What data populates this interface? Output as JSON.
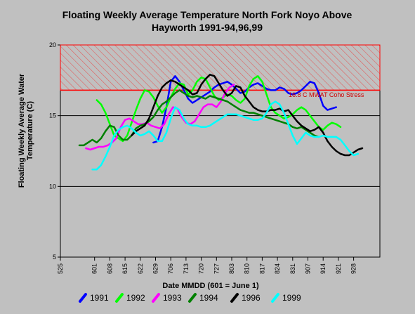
{
  "chart_data": {
    "type": "line",
    "title_line1": "Floating Weekly Average Temperature North Fork Noyo Above",
    "title_line2": "Hayworth 1991-94,96,99",
    "xlabel": "Date MMDD (601 = June 1)",
    "ylabel_line1": "Floating Weekly Average Water",
    "ylabel_line2": "Temperature (C)",
    "xlim": [
      0,
      126
    ],
    "ylim": [
      5,
      20
    ],
    "xticks": [
      {
        "pos": 0,
        "label": "525"
      },
      {
        "pos": 7,
        "label": "601"
      },
      {
        "pos": 14,
        "label": "608"
      },
      {
        "pos": 21,
        "label": "615"
      },
      {
        "pos": 28,
        "label": "622"
      },
      {
        "pos": 35,
        "label": "629"
      },
      {
        "pos": 42,
        "label": "706"
      },
      {
        "pos": 49,
        "label": "713"
      },
      {
        "pos": 56,
        "label": "720"
      },
      {
        "pos": 63,
        "label": "727"
      },
      {
        "pos": 70,
        "label": "803"
      },
      {
        "pos": 77,
        "label": "810"
      },
      {
        "pos": 84,
        "label": "817"
      },
      {
        "pos": 91,
        "label": "824"
      },
      {
        "pos": 98,
        "label": "831"
      },
      {
        "pos": 105,
        "label": "907"
      },
      {
        "pos": 112,
        "label": "914"
      },
      {
        "pos": 119,
        "label": "921"
      },
      {
        "pos": 126,
        "label": "928"
      }
    ],
    "yticks": [
      5,
      10,
      15,
      20
    ],
    "gridlines_y": [
      10,
      15
    ],
    "threshold": {
      "value": 16.8,
      "label": "16.8 C MWAT Coho Stress",
      "color": "#ff0000"
    },
    "series": [
      {
        "name": "1991",
        "color": "#0000ff",
        "x": [
          34,
          36,
          38,
          40,
          42,
          44,
          46,
          48,
          50,
          52,
          54,
          56,
          58,
          60,
          62,
          64,
          66,
          68,
          70,
          72,
          74,
          76,
          78,
          80,
          82,
          84,
          86,
          88,
          90,
          92,
          94,
          96,
          98,
          100,
          102,
          104,
          106,
          108,
          110,
          112,
          114,
          116,
          118
        ],
        "y": [
          13.1,
          13.2,
          14.2,
          15.6,
          17.4,
          17.8,
          17.4,
          16.8,
          16.2,
          15.9,
          16.1,
          16.3,
          16.5,
          16.7,
          17.0,
          17.2,
          17.3,
          17.4,
          17.2,
          16.9,
          16.6,
          16.7,
          17.0,
          17.2,
          17.3,
          17.1,
          16.9,
          16.8,
          16.8,
          17.0,
          16.9,
          16.6,
          16.5,
          16.6,
          16.8,
          17.1,
          17.4,
          17.3,
          16.6,
          15.7,
          15.4,
          15.5,
          15.6
        ]
      },
      {
        "name": "1992",
        "color": "#00ff00",
        "x": [
          8,
          10,
          12,
          14,
          16,
          18,
          20,
          22,
          24,
          26,
          28,
          30,
          32,
          34,
          36,
          38,
          40,
          42,
          44,
          46,
          48,
          50,
          52,
          54,
          56,
          58,
          60,
          62,
          64,
          66,
          68,
          70,
          72,
          74,
          76,
          78,
          80,
          82,
          84,
          86,
          88,
          90,
          92,
          94,
          96,
          98,
          100,
          102,
          104,
          106,
          108,
          110,
          112,
          114,
          116,
          118,
          120
        ],
        "y": [
          16.1,
          15.8,
          15.2,
          14.4,
          13.6,
          13.4,
          13.2,
          13.6,
          14.5,
          15.4,
          16.2,
          16.8,
          16.7,
          16.3,
          15.7,
          15.2,
          15.6,
          16.3,
          16.9,
          17.3,
          17.2,
          16.5,
          16.8,
          17.4,
          17.7,
          17.6,
          17.0,
          16.4,
          16.1,
          16.3,
          16.5,
          16.4,
          16.1,
          15.9,
          16.2,
          17.1,
          17.6,
          17.8,
          17.4,
          16.5,
          15.6,
          15.2,
          15.0,
          14.8,
          14.9,
          15.1,
          15.4,
          15.6,
          15.4,
          15.0,
          14.6,
          14.2,
          14.0,
          14.3,
          14.5,
          14.4,
          14.2
        ]
      },
      {
        "name": "1993",
        "color": "#ff00ff",
        "x": [
          3,
          5,
          7,
          9,
          11,
          13,
          15,
          17,
          19,
          21,
          23,
          25,
          27,
          29,
          31,
          33,
          35,
          37,
          39,
          41,
          43,
          45,
          47,
          49,
          51,
          53,
          55,
          57,
          59,
          61,
          63,
          65,
          67,
          69,
          71
        ],
        "y": [
          12.7,
          12.6,
          12.7,
          12.8,
          12.8,
          12.9,
          13.1,
          13.4,
          14.2,
          14.7,
          14.8,
          14.6,
          14.4,
          14.4,
          14.5,
          14.3,
          14.2,
          14.1,
          14.4,
          15.1,
          15.6,
          15.5,
          14.9,
          14.5,
          14.4,
          14.6,
          15.1,
          15.6,
          15.8,
          15.8,
          15.6,
          16.0,
          16.6,
          17.0,
          17.2
        ]
      },
      {
        "name": "1994",
        "color": "#008000",
        "x": [
          0,
          2,
          4,
          6,
          8,
          10,
          12,
          14,
          16,
          18,
          20,
          22,
          24,
          26,
          28,
          30,
          32,
          34,
          36,
          38,
          40,
          42,
          44,
          46,
          48,
          50,
          52,
          54,
          56,
          58,
          60,
          62,
          64,
          66,
          68,
          70,
          72,
          74,
          76,
          78,
          80,
          82,
          84,
          86,
          88,
          90,
          92,
          94,
          96,
          98,
          100,
          102,
          104,
          106,
          108,
          110
        ],
        "y": [
          12.9,
          12.9,
          13.1,
          13.3,
          13.1,
          13.4,
          13.9,
          14.3,
          14.2,
          13.6,
          13.3,
          13.3,
          13.6,
          14.1,
          14.3,
          14.4,
          14.6,
          14.9,
          15.4,
          15.8,
          16.0,
          16.3,
          16.6,
          16.8,
          16.6,
          16.4,
          16.3,
          16.4,
          16.3,
          16.2,
          16.4,
          16.3,
          16.2,
          16.1,
          16.0,
          15.8,
          15.6,
          15.4,
          15.3,
          15.2,
          15.2,
          15.1,
          15.0,
          14.9,
          14.8,
          14.7,
          14.6,
          14.5,
          14.4,
          14.2,
          14.1,
          14.2,
          14.0,
          13.8,
          13.6,
          13.5
        ]
      },
      {
        "name": "1996",
        "color": "#000000",
        "x": [
          24,
          26,
          28,
          30,
          32,
          34,
          36,
          38,
          40,
          42,
          44,
          46,
          48,
          50,
          52,
          54,
          56,
          58,
          60,
          62,
          64,
          66,
          68,
          70,
          72,
          74,
          76,
          78,
          80,
          82,
          84,
          86,
          88,
          90,
          92,
          94,
          96,
          98,
          100,
          102,
          104,
          106,
          108,
          110,
          112,
          114,
          116,
          118,
          120,
          122,
          124,
          126,
          128,
          130
        ],
        "y": [
          13.6,
          13.9,
          14.1,
          14.3,
          14.8,
          15.6,
          16.4,
          17.0,
          17.3,
          17.5,
          17.4,
          17.2,
          17.0,
          16.8,
          16.5,
          16.6,
          17.2,
          17.6,
          17.9,
          17.8,
          17.3,
          16.8,
          16.4,
          16.6,
          17.1,
          17.0,
          16.4,
          16.0,
          15.6,
          15.4,
          15.3,
          15.3,
          15.4,
          15.4,
          15.5,
          15.3,
          15.4,
          15.0,
          14.6,
          14.3,
          14.1,
          13.9,
          14.0,
          14.2,
          13.8,
          13.2,
          12.8,
          12.5,
          12.3,
          12.2,
          12.2,
          12.4,
          12.6,
          12.7
        ]
      },
      {
        "name": "1999",
        "color": "#00ffff",
        "x": [
          6,
          8,
          10,
          12,
          14,
          16,
          18,
          20,
          22,
          24,
          26,
          28,
          30,
          32,
          34,
          36,
          38,
          40,
          42,
          44,
          46,
          48,
          50,
          52,
          54,
          56,
          58,
          60,
          62,
          64,
          66,
          68,
          70,
          72,
          74,
          76,
          78,
          80,
          82,
          84,
          86,
          88,
          90,
          92,
          94,
          96,
          98,
          100,
          102,
          104,
          106,
          108,
          110,
          112,
          114,
          116,
          118,
          120,
          122,
          124,
          126,
          128
        ],
        "y": [
          11.2,
          11.2,
          11.5,
          12.1,
          12.8,
          13.6,
          14.0,
          14.2,
          14.3,
          14.1,
          13.8,
          13.6,
          13.7,
          13.9,
          13.6,
          13.2,
          13.2,
          13.8,
          14.8,
          15.6,
          15.4,
          14.8,
          14.4,
          14.3,
          14.3,
          14.2,
          14.2,
          14.3,
          14.5,
          14.7,
          14.9,
          15.1,
          15.1,
          15.1,
          15.0,
          14.9,
          14.8,
          14.7,
          14.7,
          14.8,
          15.2,
          15.8,
          16.0,
          15.8,
          15.2,
          14.4,
          13.6,
          13.0,
          13.4,
          13.8,
          13.6,
          13.5,
          13.5,
          13.6,
          13.5,
          13.5,
          13.5,
          13.3,
          12.9,
          12.5,
          12.2,
          12.3
        ]
      }
    ]
  }
}
